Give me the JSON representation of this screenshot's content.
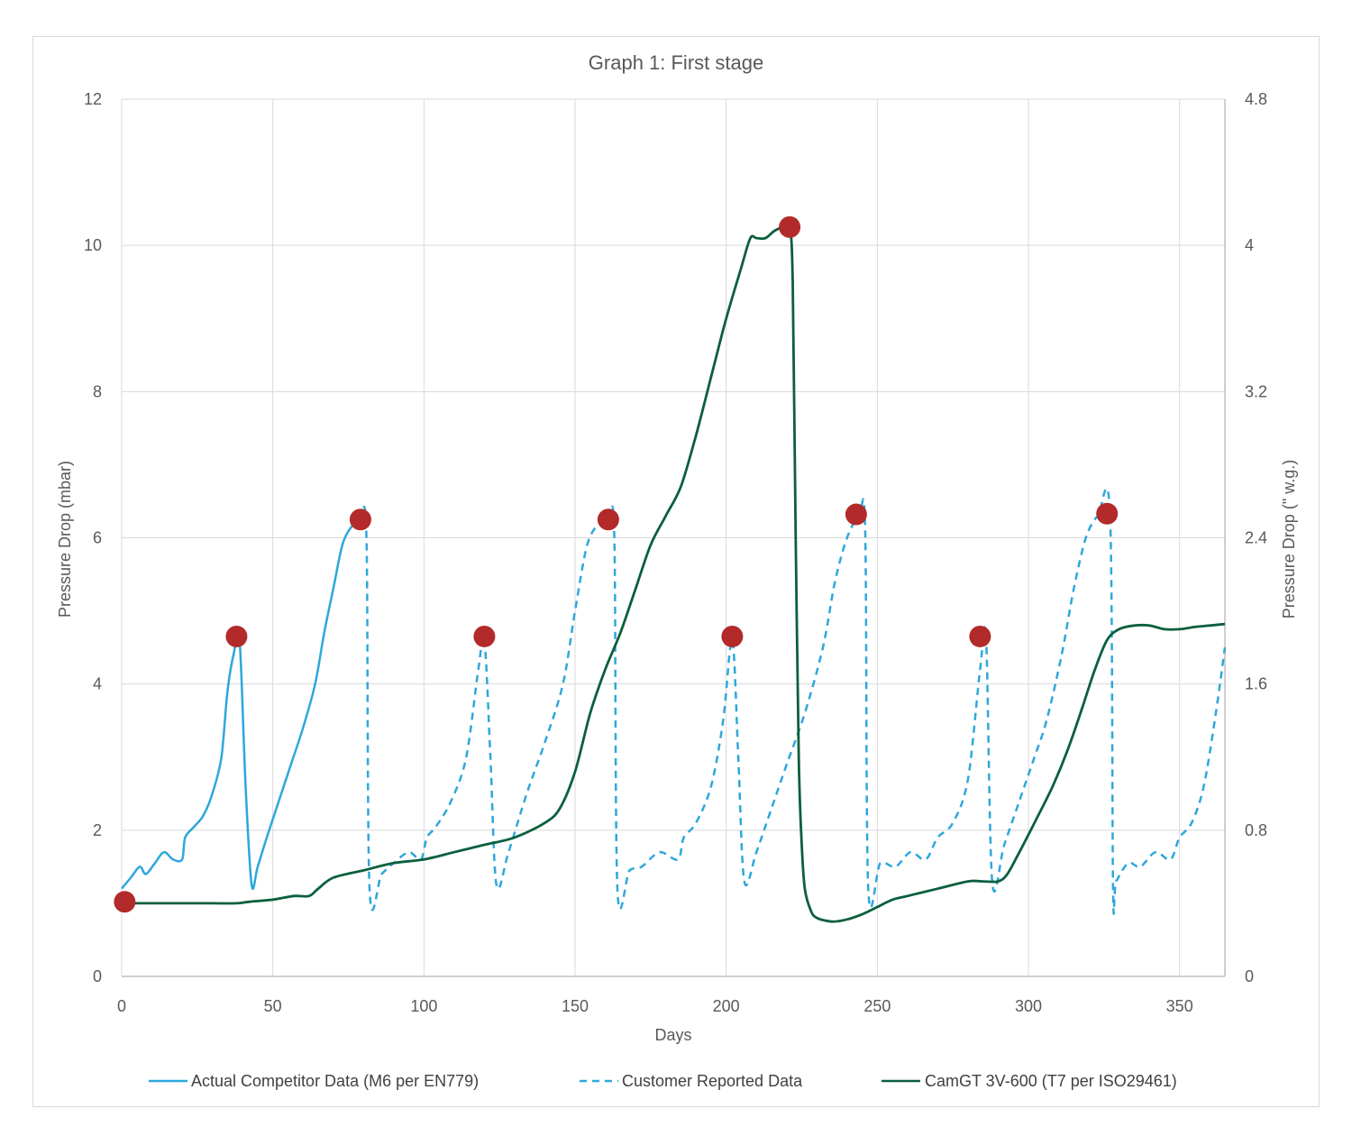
{
  "chart_data": {
    "type": "line",
    "title": "Graph 1: First stage",
    "xlabel": "Days",
    "ylabel": "Pressure Drop (mbar)",
    "y2label": "Pressure Drop (\" w.g.)",
    "xlim": [
      0,
      365
    ],
    "ylim": [
      0,
      12
    ],
    "y2lim": [
      0,
      4.8
    ],
    "x_ticks": [
      "0",
      "50",
      "100",
      "150",
      "200",
      "250",
      "300",
      "350"
    ],
    "y_ticks": [
      "0",
      "2",
      "4",
      "6",
      "8",
      "10",
      "12"
    ],
    "y2_ticks": [
      "0",
      "0.8",
      "1.6",
      "2.4",
      "3.2",
      "4",
      "4.8"
    ],
    "grid": true,
    "legend_position": "bottom",
    "colors": {
      "competitor": "#2EA7DB",
      "customer": "#2EA7DB",
      "camgt": "#0B5F3D",
      "markers": "#B22A2A",
      "grid": "#d9d9d9",
      "axis": "#bfbfbf"
    },
    "series": [
      {
        "name": "Actual Competitor Data (M6 per EN779)",
        "style": "solid",
        "x": [
          0,
          3,
          6,
          8,
          11,
          14,
          17,
          20,
          21,
          24,
          27,
          30,
          33,
          35,
          37,
          39,
          41,
          43,
          45,
          48,
          52,
          56,
          60,
          64,
          67,
          70,
          73,
          76,
          79
        ],
        "y": [
          1.2,
          1.35,
          1.5,
          1.4,
          1.55,
          1.7,
          1.6,
          1.6,
          1.9,
          2.05,
          2.2,
          2.5,
          3.0,
          3.9,
          4.4,
          4.6,
          2.6,
          1.25,
          1.5,
          1.9,
          2.4,
          2.9,
          3.4,
          4.0,
          4.7,
          5.3,
          5.9,
          6.15,
          6.25
        ]
      },
      {
        "name": "Customer Reported Data",
        "style": "dashed",
        "x": [
          79,
          81,
          82,
          86,
          90,
          95,
          99,
          101,
          104,
          109,
          114,
          118,
          120,
          122,
          124,
          128,
          134,
          140,
          146,
          150,
          154,
          158,
          161,
          163,
          164,
          168,
          172,
          178,
          184,
          186,
          190,
          195,
          199,
          202,
          204,
          206,
          210,
          215,
          220,
          226,
          232,
          236,
          240,
          244,
          246,
          247,
          251,
          256,
          261,
          266,
          270,
          275,
          280,
          284,
          286,
          288,
          292,
          297,
          302,
          306,
          311,
          315,
          319,
          323,
          327,
          328,
          329,
          333,
          337,
          342,
          347,
          350,
          354,
          358,
          362,
          365
        ],
        "y": [
          6.25,
          6.0,
          1.2,
          1.4,
          1.55,
          1.7,
          1.6,
          1.9,
          2.05,
          2.4,
          3.0,
          4.2,
          4.6,
          3.0,
          1.25,
          1.7,
          2.5,
          3.2,
          4.0,
          5.0,
          5.9,
          6.2,
          6.25,
          6.0,
          1.2,
          1.45,
          1.5,
          1.7,
          1.6,
          1.9,
          2.1,
          2.6,
          3.5,
          4.6,
          3.0,
          1.3,
          1.7,
          2.3,
          2.9,
          3.6,
          4.5,
          5.4,
          6.0,
          6.3,
          6.1,
          1.2,
          1.55,
          1.5,
          1.7,
          1.6,
          1.9,
          2.1,
          2.7,
          4.2,
          4.6,
          1.3,
          1.8,
          2.4,
          3.0,
          3.5,
          4.4,
          5.3,
          6.0,
          6.3,
          6.3,
          1.2,
          1.3,
          1.55,
          1.5,
          1.7,
          1.6,
          1.9,
          2.1,
          2.6,
          3.6,
          4.5
        ]
      },
      {
        "name": "CamGT 3V-600 (T7 per ISO29461)",
        "style": "solid",
        "x": [
          0,
          3,
          10,
          20,
          30,
          38,
          42,
          50,
          57,
          62,
          65,
          70,
          80,
          90,
          100,
          110,
          120,
          130,
          140,
          145,
          150,
          155,
          160,
          165,
          170,
          175,
          180,
          185,
          190,
          195,
          200,
          205,
          208,
          210,
          213,
          216,
          219,
          221,
          222,
          223,
          224,
          225,
          226,
          228,
          230,
          235,
          240,
          245,
          250,
          255,
          260,
          270,
          280,
          285,
          290,
          293,
          297,
          302,
          308,
          313,
          318,
          322,
          326,
          330,
          335,
          340,
          345,
          350,
          355,
          360,
          365
        ],
        "y": [
          1.0,
          1.0,
          1.0,
          1.0,
          1.0,
          1.0,
          1.02,
          1.05,
          1.1,
          1.1,
          1.2,
          1.35,
          1.45,
          1.55,
          1.6,
          1.7,
          1.8,
          1.9,
          2.1,
          2.3,
          2.8,
          3.6,
          4.2,
          4.7,
          5.3,
          5.9,
          6.3,
          6.7,
          7.4,
          8.2,
          9.0,
          9.7,
          10.1,
          10.1,
          10.1,
          10.2,
          10.25,
          10.25,
          9.5,
          6.0,
          3.0,
          1.8,
          1.2,
          0.9,
          0.8,
          0.75,
          0.78,
          0.85,
          0.95,
          1.05,
          1.1,
          1.2,
          1.3,
          1.3,
          1.3,
          1.4,
          1.7,
          2.1,
          2.6,
          3.1,
          3.7,
          4.2,
          4.6,
          4.75,
          4.8,
          4.8,
          4.75,
          4.75,
          4.78,
          4.8,
          4.82
        ]
      }
    ],
    "markers": {
      "x": [
        1,
        38,
        79,
        120,
        161,
        202,
        221,
        243,
        284,
        326
      ],
      "y": [
        1.02,
        4.65,
        6.25,
        4.65,
        6.25,
        4.65,
        10.25,
        6.32,
        4.65,
        6.33
      ]
    }
  }
}
